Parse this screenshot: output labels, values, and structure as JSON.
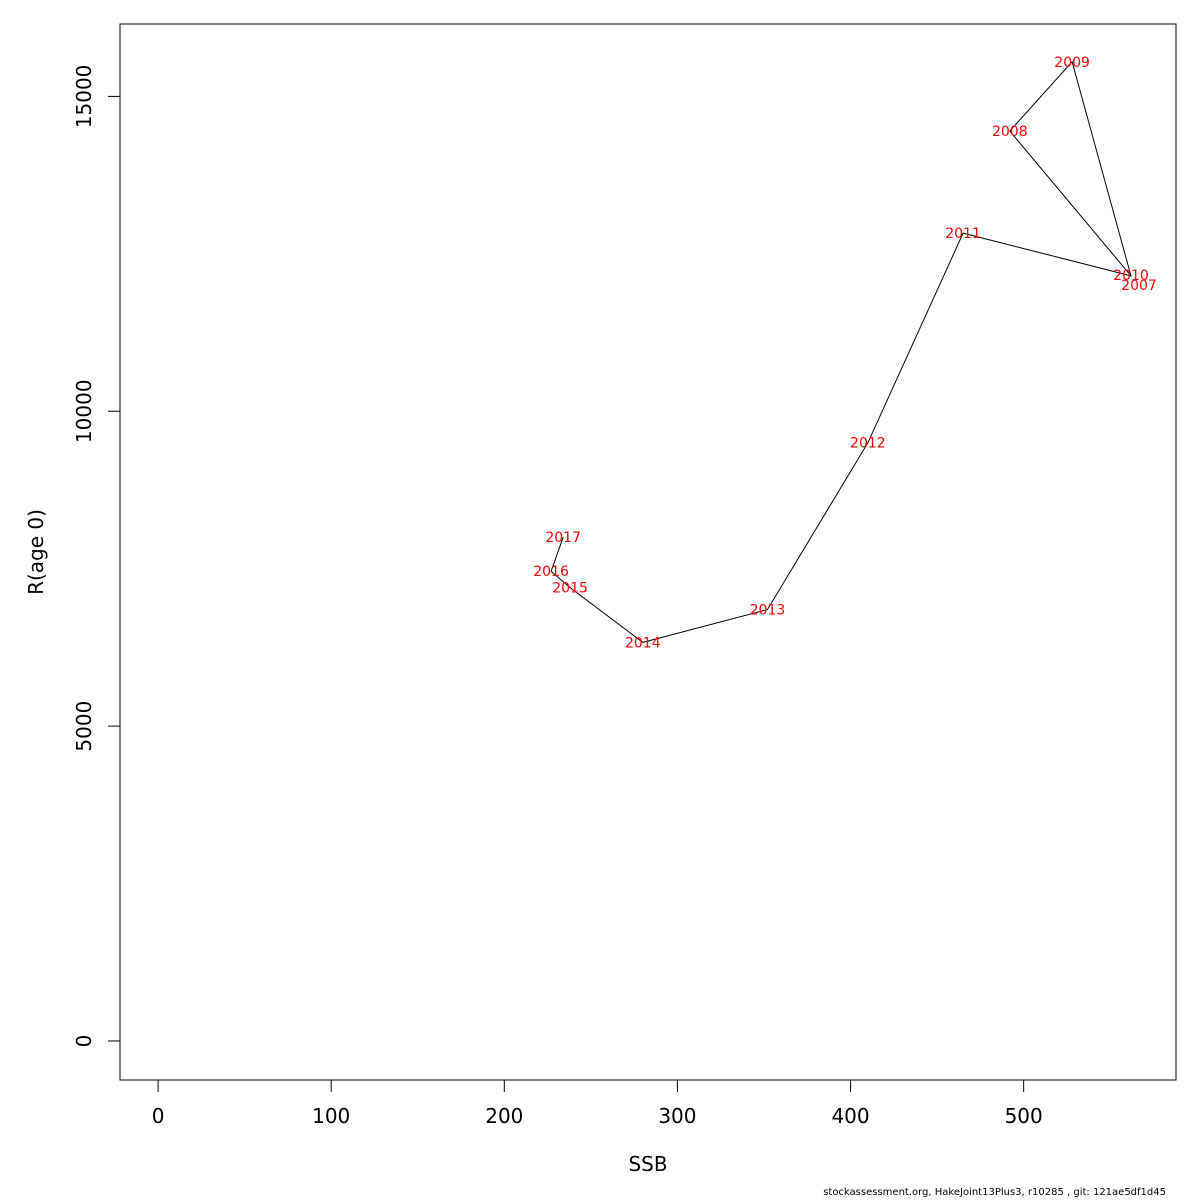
{
  "chart_data": {
    "type": "line",
    "title": "",
    "xlabel": "SSB",
    "ylabel": "R(age 0)",
    "xlim": [
      -22,
      588
    ],
    "ylim": [
      -620,
      16150
    ],
    "xticks": [
      0,
      100,
      200,
      300,
      400,
      500
    ],
    "yticks": [
      0,
      5000,
      10000,
      15000
    ],
    "line_color": "#000000",
    "label_color": "#ff0000",
    "grid": false,
    "legend": "none",
    "series": [
      {
        "points": [
          {
            "label": "2007",
            "x": 562,
            "y": 12150
          },
          {
            "label": "2008",
            "x": 492,
            "y": 14450
          },
          {
            "label": "2009",
            "x": 528,
            "y": 15550
          },
          {
            "label": "2010",
            "x": 562,
            "y": 12150
          },
          {
            "label": "2011",
            "x": 465,
            "y": 12830
          },
          {
            "label": "2012",
            "x": 410,
            "y": 9500
          },
          {
            "label": "2013",
            "x": 352,
            "y": 6850
          },
          {
            "label": "2014",
            "x": 280,
            "y": 6330
          },
          {
            "label": "2015",
            "x": 238,
            "y": 7200
          },
          {
            "label": "2016",
            "x": 227,
            "y": 7460
          },
          {
            "label": "2017",
            "x": 234,
            "y": 8000
          }
        ]
      }
    ]
  },
  "footer": "stockassessment.org, HakeJoint13Plus3, r10285 , git: 121ae5df1d45"
}
